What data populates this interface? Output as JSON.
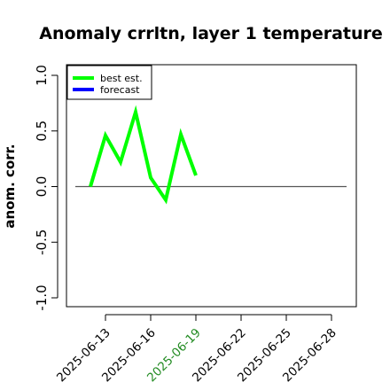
{
  "chart_data": {
    "type": "line",
    "title": "Anomaly crrltn, layer 1 temperature",
    "ylabel": "anom. corr.",
    "xlabel": "",
    "ylim": [
      -1.0,
      1.0
    ],
    "yticks": [
      "-1.0",
      "-0.5",
      "0.0",
      "0.5",
      "1.0"
    ],
    "xticks": [
      "2025-06-13",
      "2025-06-16",
      "2025-06-19",
      "2025-06-22",
      "2025-06-25",
      "2025-06-28"
    ],
    "highlighted_xtick": "2025-06-19",
    "highlight_color": "#228B22",
    "zero_line": true,
    "legend": {
      "position": "top-left",
      "entries": [
        {
          "label": "best est.",
          "color": "#00ff00"
        },
        {
          "label": "forecast",
          "color": "#0000ff"
        }
      ]
    },
    "series": [
      {
        "name": "best est.",
        "color": "#00ff00",
        "x": [
          "2025-06-12",
          "2025-06-13",
          "2025-06-14",
          "2025-06-15",
          "2025-06-16",
          "2025-06-17",
          "2025-06-18",
          "2025-06-19"
        ],
        "values": [
          0.0,
          0.46,
          0.22,
          0.67,
          0.08,
          -0.12,
          0.47,
          0.1
        ]
      },
      {
        "name": "forecast",
        "color": "#0000ff",
        "x": [],
        "values": []
      }
    ],
    "reference_line": {
      "y": 0.0,
      "x_from": "2025-06-11",
      "x_to": "2025-06-29",
      "color": "#555555"
    }
  }
}
